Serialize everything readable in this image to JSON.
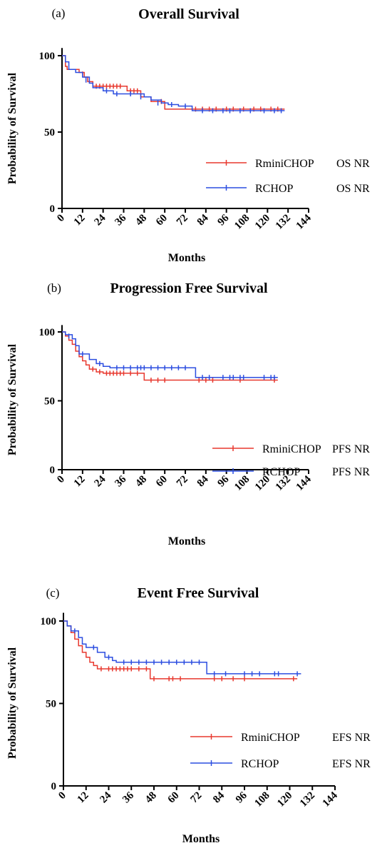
{
  "chart_data": [
    {
      "type": "line",
      "panel_letter": "(a)",
      "title": "Overall Survival",
      "xlabel": "Months",
      "ylabel": "Probability of Survival",
      "xlim": [
        0,
        144
      ],
      "ylim": [
        0,
        105
      ],
      "x_ticks": [
        "0",
        "12",
        "24",
        "36",
        "48",
        "60",
        "72",
        "84",
        "96",
        "108",
        "120",
        "132",
        "144"
      ],
      "y_ticks": [
        "0",
        "50",
        "100"
      ],
      "grid": false,
      "legend_position": "right",
      "series": [
        {
          "name": "RminiCHOP",
          "median": "OS NR",
          "color": "#e8382e",
          "steps": [
            [
              0,
              100
            ],
            [
              2,
              93
            ],
            [
              3,
              91
            ],
            [
              10,
              89
            ],
            [
              13,
              86
            ],
            [
              15,
              83
            ],
            [
              18,
              80
            ],
            [
              38,
              77
            ],
            [
              46,
              73
            ],
            [
              52,
              70
            ],
            [
              60,
              65
            ],
            [
              130,
              65
            ]
          ],
          "censored": [
            [
              12,
              88
            ],
            [
              20,
              80
            ],
            [
              22,
              80
            ],
            [
              24,
              80
            ],
            [
              26,
              80
            ],
            [
              28,
              80
            ],
            [
              30,
              80
            ],
            [
              32,
              80
            ],
            [
              34,
              80
            ],
            [
              40,
              77
            ],
            [
              42,
              77
            ],
            [
              44,
              77
            ],
            [
              58,
              70
            ],
            [
              78,
              65
            ],
            [
              82,
              65
            ],
            [
              86,
              65
            ],
            [
              90,
              65
            ],
            [
              96,
              65
            ],
            [
              100,
              65
            ],
            [
              106,
              65
            ],
            [
              112,
              65
            ],
            [
              116,
              65
            ],
            [
              122,
              65
            ],
            [
              126,
              65
            ]
          ]
        },
        {
          "name": "RCHOP",
          "median": "OS NR",
          "color": "#2c4ee0",
          "steps": [
            [
              0,
              100
            ],
            [
              2,
              96
            ],
            [
              4,
              91
            ],
            [
              8,
              89
            ],
            [
              12,
              86
            ],
            [
              16,
              82
            ],
            [
              18,
              79
            ],
            [
              24,
              77
            ],
            [
              30,
              75
            ],
            [
              42,
              75
            ],
            [
              48,
              73
            ],
            [
              52,
              71
            ],
            [
              58,
              69
            ],
            [
              62,
              68
            ],
            [
              68,
              67
            ],
            [
              76,
              64
            ],
            [
              130,
              64
            ]
          ],
          "censored": [
            [
              14,
              84
            ],
            [
              26,
              77
            ],
            [
              32,
              75
            ],
            [
              40,
              75
            ],
            [
              46,
              73
            ],
            [
              56,
              69
            ],
            [
              64,
              68
            ],
            [
              72,
              67
            ],
            [
              82,
              64
            ],
            [
              88,
              64
            ],
            [
              94,
              64
            ],
            [
              98,
              64
            ],
            [
              104,
              64
            ],
            [
              110,
              64
            ],
            [
              118,
              64
            ],
            [
              124,
              64
            ],
            [
              128,
              64
            ]
          ]
        }
      ]
    },
    {
      "type": "line",
      "panel_letter": "(b)",
      "title": "Progression Free Survival",
      "xlabel": "Months",
      "ylabel": "Probability of Survival",
      "xlim": [
        0,
        144
      ],
      "ylim": [
        0,
        105
      ],
      "x_ticks": [
        "0",
        "12",
        "24",
        "36",
        "48",
        "60",
        "72",
        "84",
        "96",
        "108",
        "120",
        "132",
        "144"
      ],
      "y_ticks": [
        "0",
        "50",
        "100"
      ],
      "grid": false,
      "legend_position": "right",
      "series": [
        {
          "name": "RminiCHOP",
          "median": "PFS NR",
          "color": "#e8382e",
          "steps": [
            [
              0,
              100
            ],
            [
              2,
              97
            ],
            [
              4,
              94
            ],
            [
              6,
              91
            ],
            [
              8,
              86
            ],
            [
              10,
              82
            ],
            [
              12,
              79
            ],
            [
              14,
              76
            ],
            [
              16,
              73
            ],
            [
              20,
              71
            ],
            [
              24,
              70
            ],
            [
              48,
              65
            ],
            [
              126,
              65
            ]
          ],
          "censored": [
            [
              18,
              73
            ],
            [
              22,
              71
            ],
            [
              26,
              70
            ],
            [
              28,
              70
            ],
            [
              30,
              70
            ],
            [
              32,
              70
            ],
            [
              34,
              70
            ],
            [
              36,
              70
            ],
            [
              40,
              70
            ],
            [
              44,
              70
            ],
            [
              52,
              65
            ],
            [
              56,
              65
            ],
            [
              60,
              65
            ],
            [
              80,
              65
            ],
            [
              84,
              65
            ],
            [
              88,
              65
            ],
            [
              104,
              65
            ],
            [
              124,
              65
            ]
          ]
        },
        {
          "name": "RCHOP",
          "median": "PFS NR",
          "color": "#2c4ee0",
          "steps": [
            [
              0,
              100
            ],
            [
              2,
              98
            ],
            [
              6,
              95
            ],
            [
              8,
              90
            ],
            [
              10,
              84
            ],
            [
              16,
              80
            ],
            [
              20,
              77
            ],
            [
              24,
              75
            ],
            [
              28,
              74
            ],
            [
              78,
              67
            ],
            [
              126,
              67
            ]
          ],
          "censored": [
            [
              4,
              97
            ],
            [
              12,
              84
            ],
            [
              22,
              77
            ],
            [
              32,
              74
            ],
            [
              36,
              74
            ],
            [
              40,
              74
            ],
            [
              44,
              74
            ],
            [
              46,
              74
            ],
            [
              48,
              74
            ],
            [
              52,
              74
            ],
            [
              56,
              74
            ],
            [
              60,
              74
            ],
            [
              64,
              74
            ],
            [
              68,
              74
            ],
            [
              72,
              74
            ],
            [
              82,
              67
            ],
            [
              86,
              67
            ],
            [
              94,
              67
            ],
            [
              98,
              67
            ],
            [
              100,
              67
            ],
            [
              104,
              67
            ],
            [
              106,
              67
            ],
            [
              118,
              67
            ],
            [
              122,
              67
            ],
            [
              124,
              67
            ]
          ]
        }
      ]
    },
    {
      "type": "line",
      "panel_letter": "(c)",
      "title": "Event Free Survival",
      "xlabel": "Months",
      "ylabel": "Probability of Survival",
      "xlim": [
        0,
        144
      ],
      "ylim": [
        0,
        105
      ],
      "x_ticks": [
        "0",
        "12",
        "24",
        "36",
        "48",
        "60",
        "72",
        "84",
        "96",
        "108",
        "120",
        "132",
        "144"
      ],
      "y_ticks": [
        "0",
        "50",
        "100"
      ],
      "grid": false,
      "legend_position": "right",
      "series": [
        {
          "name": "RminiCHOP",
          "median": "EFS NR",
          "color": "#e8382e",
          "steps": [
            [
              0,
              100
            ],
            [
              2,
              97
            ],
            [
              4,
              93
            ],
            [
              6,
              89
            ],
            [
              8,
              85
            ],
            [
              10,
              81
            ],
            [
              12,
              78
            ],
            [
              14,
              75
            ],
            [
              16,
              73
            ],
            [
              18,
              71
            ],
            [
              46,
              65
            ],
            [
              124,
              65
            ]
          ],
          "censored": [
            [
              20,
              71
            ],
            [
              24,
              71
            ],
            [
              26,
              71
            ],
            [
              28,
              71
            ],
            [
              30,
              71
            ],
            [
              32,
              71
            ],
            [
              34,
              71
            ],
            [
              36,
              71
            ],
            [
              40,
              71
            ],
            [
              44,
              71
            ],
            [
              48,
              65
            ],
            [
              56,
              65
            ],
            [
              58,
              65
            ],
            [
              62,
              65
            ],
            [
              80,
              65
            ],
            [
              84,
              65
            ],
            [
              90,
              65
            ],
            [
              96,
              65
            ],
            [
              122,
              65
            ]
          ]
        },
        {
          "name": "RCHOP",
          "median": "EFS NR",
          "color": "#2c4ee0",
          "steps": [
            [
              0,
              100
            ],
            [
              2,
              97
            ],
            [
              4,
              94
            ],
            [
              8,
              90
            ],
            [
              10,
              86
            ],
            [
              12,
              84
            ],
            [
              18,
              81
            ],
            [
              22,
              78
            ],
            [
              26,
              76
            ],
            [
              28,
              75
            ],
            [
              76,
              68
            ],
            [
              126,
              68
            ]
          ],
          "censored": [
            [
              6,
              94
            ],
            [
              16,
              84
            ],
            [
              24,
              78
            ],
            [
              32,
              75
            ],
            [
              36,
              75
            ],
            [
              40,
              75
            ],
            [
              44,
              75
            ],
            [
              48,
              75
            ],
            [
              52,
              75
            ],
            [
              56,
              75
            ],
            [
              60,
              75
            ],
            [
              64,
              75
            ],
            [
              68,
              75
            ],
            [
              72,
              75
            ],
            [
              80,
              68
            ],
            [
              86,
              68
            ],
            [
              96,
              68
            ],
            [
              100,
              68
            ],
            [
              104,
              68
            ],
            [
              112,
              68
            ],
            [
              114,
              68
            ],
            [
              124,
              68
            ]
          ]
        }
      ]
    }
  ]
}
